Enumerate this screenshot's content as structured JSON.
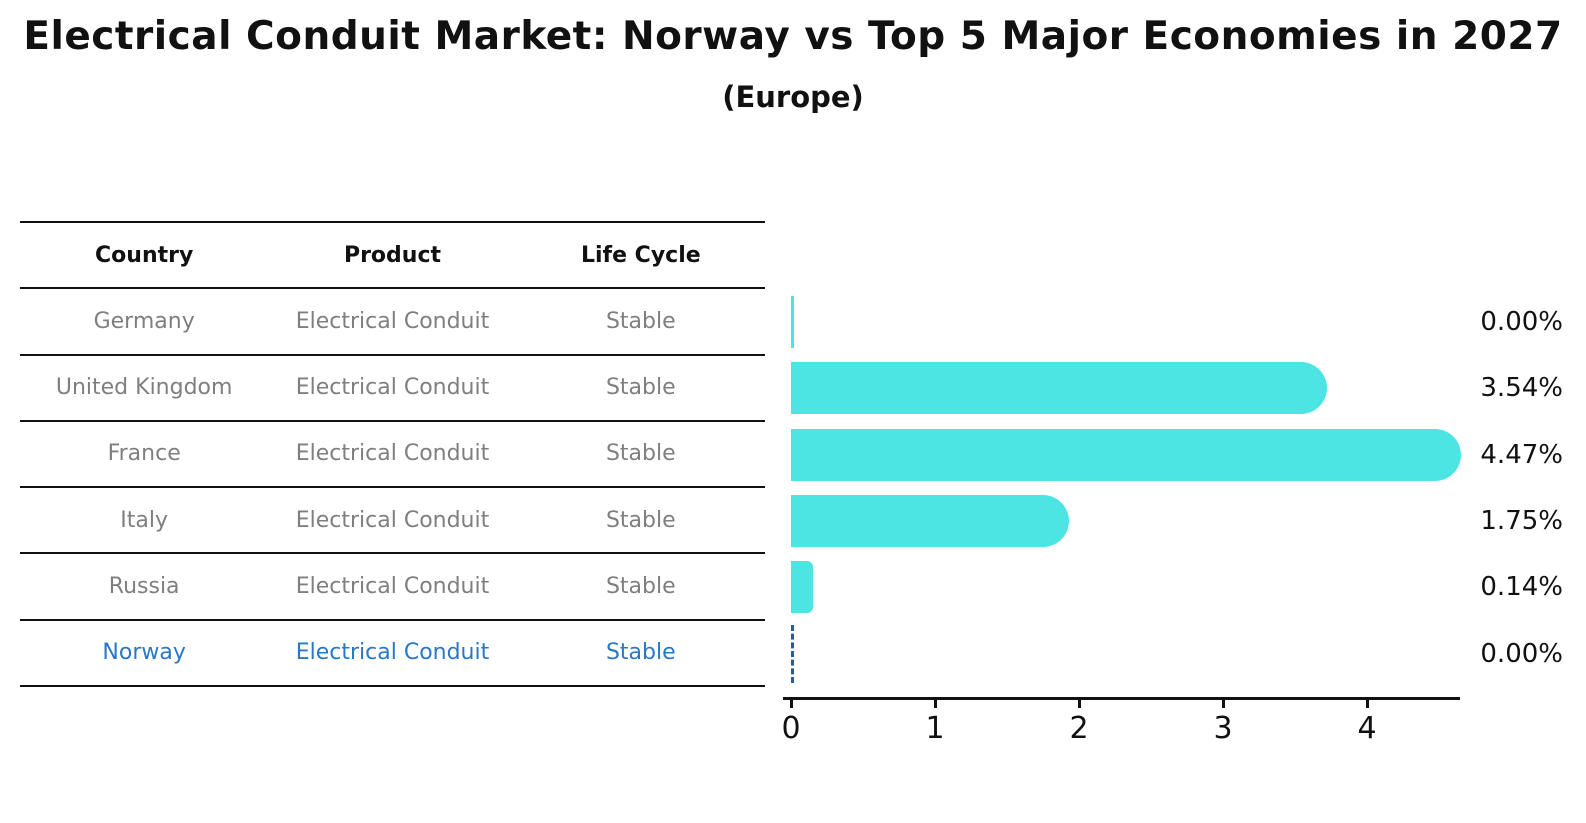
{
  "title": "Electrical Conduit Market: Norway vs Top 5 Major Economies in 2027",
  "subtitle": "(Europe)",
  "table": {
    "headers": {
      "country": "Country",
      "product": "Product",
      "life_cycle": "Life Cycle"
    },
    "rows": [
      {
        "country": "Germany",
        "product": "Electrical Conduit",
        "life_cycle": "Stable",
        "highlight": false
      },
      {
        "country": "United Kingdom",
        "product": "Electrical Conduit",
        "life_cycle": "Stable",
        "highlight": false
      },
      {
        "country": "France",
        "product": "Electrical Conduit",
        "life_cycle": "Stable",
        "highlight": false
      },
      {
        "country": "Italy",
        "product": "Electrical Conduit",
        "life_cycle": "Stable",
        "highlight": false
      },
      {
        "country": "Russia",
        "product": "Electrical Conduit",
        "life_cycle": "Stable",
        "highlight": false
      },
      {
        "country": "Norway",
        "product": "Electrical Conduit",
        "life_cycle": "Stable",
        "highlight": true
      }
    ]
  },
  "chart_data": {
    "type": "bar",
    "orientation": "horizontal",
    "categories": [
      "Germany",
      "United Kingdom",
      "France",
      "Italy",
      "Russia",
      "Norway"
    ],
    "values": [
      0.0,
      3.54,
      4.47,
      1.75,
      0.14,
      0.0
    ],
    "value_labels": [
      "0.00%",
      "3.54%",
      "4.47%",
      "1.75%",
      "0.14%",
      "0.00%"
    ],
    "x_ticks": [
      0,
      1,
      2,
      3,
      4
    ],
    "xlim": [
      0,
      4.7
    ],
    "grid": false,
    "legend": false,
    "bar_color": "#4de4e4",
    "highlight_index": 5,
    "highlight_line_color": "#2a5a9f",
    "highlight_text_color": "#2878c8"
  },
  "colors": {
    "bar": "#4de4e4",
    "norway_blue": "#2878c8",
    "dashed_line": "#2a5a9f",
    "table_text_gray": "#7f7f7f",
    "axis_black": "#111111"
  }
}
